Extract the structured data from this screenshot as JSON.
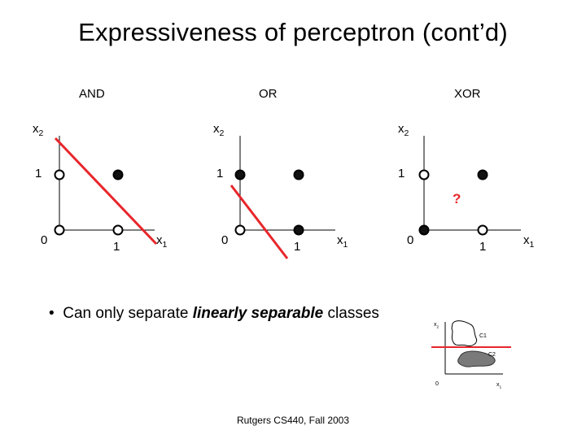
{
  "slide": {
    "title": "Expressiveness of perceptron (cont’d)",
    "bullet": {
      "marker": "•",
      "prefix": "Can only separate ",
      "emphasis": "linearly separable",
      "suffix": " classes"
    },
    "footer": "Rutgers CS440, Fall 2003"
  },
  "panels": [
    {
      "name": "AND",
      "y_axis_label": "x2",
      "x_axis_label": "x1",
      "tick_x0": "0",
      "tick_y1": "1",
      "tick_x1": "1",
      "points": [
        {
          "x1": 0,
          "x2": 0,
          "output": 0
        },
        {
          "x1": 1,
          "x2": 0,
          "output": 0
        },
        {
          "x1": 0,
          "x2": 1,
          "output": 0
        },
        {
          "x1": 1,
          "x2": 1,
          "output": 1
        }
      ],
      "separator": true
    },
    {
      "name": "OR",
      "y_axis_label": "x2",
      "x_axis_label": "x1",
      "tick_x0": "0",
      "tick_y1": "1",
      "tick_x1": "1",
      "points": [
        {
          "x1": 0,
          "x2": 0,
          "output": 0
        },
        {
          "x1": 1,
          "x2": 0,
          "output": 1
        },
        {
          "x1": 0,
          "x2": 1,
          "output": 1
        },
        {
          "x1": 1,
          "x2": 1,
          "output": 1
        }
      ],
      "separator": true
    },
    {
      "name": "XOR",
      "y_axis_label": "x2",
      "x_axis_label": "x1",
      "tick_x0": "0",
      "tick_y1": "1",
      "tick_x1": "1",
      "points": [
        {
          "x1": 0,
          "x2": 0,
          "output": 1
        },
        {
          "x1": 1,
          "x2": 0,
          "output": 0
        },
        {
          "x1": 0,
          "x2": 1,
          "output": 0
        },
        {
          "x1": 1,
          "x2": 1,
          "output": 1
        }
      ],
      "separator": false,
      "question_mark": "?"
    }
  ],
  "inset": {
    "y_axis_label": "x2",
    "x_axis_label": "x1",
    "origin_label": "0",
    "class_label_1": "C1",
    "class_label_2": "C2"
  },
  "colors": {
    "separator_line": "#e8262b",
    "question_mark": "#e8262b",
    "point_fill_positive": "#111111",
    "point_fill_negative": "#ffffff",
    "inset_blob_1": "#ffffff",
    "inset_blob_2": "#7a7a7a"
  }
}
